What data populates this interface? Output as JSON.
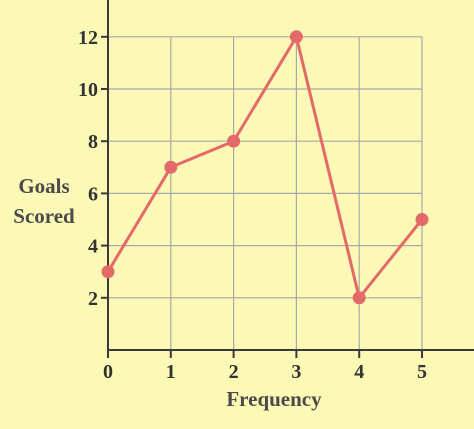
{
  "chart_data": {
    "type": "line",
    "x": [
      0,
      1,
      2,
      3,
      4,
      5
    ],
    "series": [
      {
        "values": [
          3,
          7,
          8,
          12,
          2,
          5
        ]
      }
    ],
    "xlabel": "Frequency",
    "ylabel_lines": [
      "Goals",
      "Scored"
    ],
    "xlim": [
      0,
      5
    ],
    "ylim": [
      0,
      12
    ],
    "x_ticks": [
      "0",
      "1",
      "2",
      "3",
      "4",
      "5"
    ],
    "y_ticks": [
      "2",
      "4",
      "6",
      "8",
      "10",
      "12"
    ],
    "grid": true,
    "colors": {
      "background": "#fbf9b5",
      "grid": "#a9a9a9",
      "axis": "#3a3a3a",
      "line": "#e46a6a",
      "marker": "#e46a6a"
    }
  }
}
